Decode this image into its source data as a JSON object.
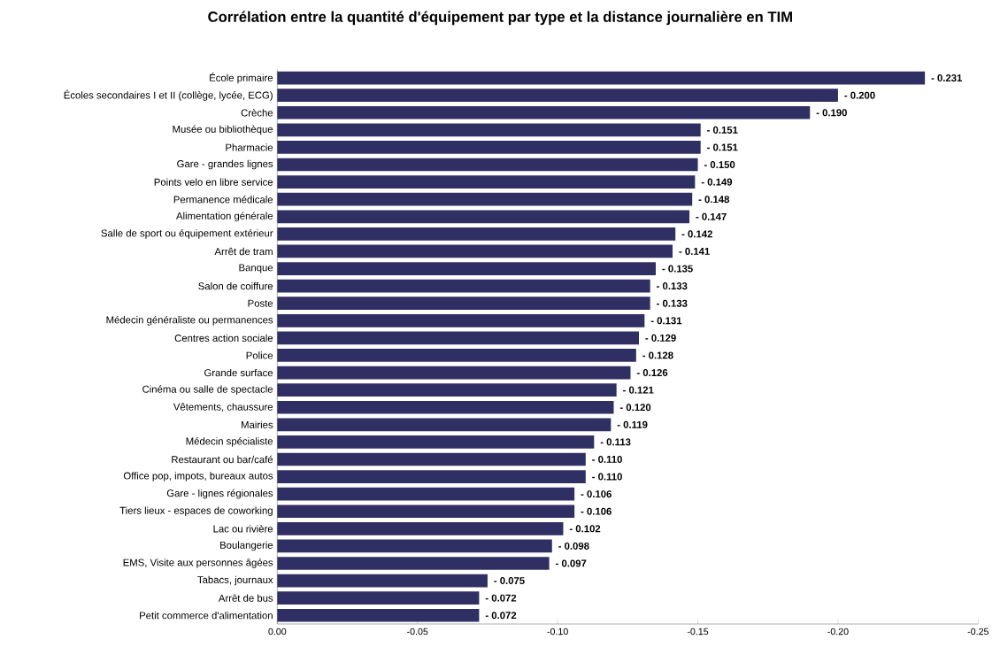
{
  "chart_data": {
    "type": "bar",
    "orientation": "horizontal",
    "title": "Corrélation entre la quantité d'équipement par type et la distance journalière en TIM",
    "categories": [
      "École primaire",
      "Écoles secondaires I et II (collège, lycée, ECG)",
      "Crèche",
      "Musée ou bibliothèque",
      "Pharmacie",
      "Gare - grandes lignes",
      "Points velo en libre service",
      "Permanence médicale",
      "Alimentation générale",
      "Salle de sport ou équipement extérieur",
      "Arrêt de tram",
      "Banque",
      "Salon de coiffure",
      "Poste",
      "Médecin généraliste ou permanences",
      "Centres action sociale",
      "Police",
      "Grande surface",
      "Cinéma ou salle de spectacle",
      "Vêtements, chaussure",
      "Mairies",
      "Médecin spécialiste",
      "Restaurant ou bar/café",
      "Office pop, impots, bureaux autos",
      "Gare - lignes régionales",
      "Tiers lieux - espaces de coworking",
      "Lac ou rivière",
      "Boulangerie",
      "EMS, Visite aux personnes âgées",
      "Tabacs, journaux",
      "Arrêt de bus",
      "Petit commerce d'alimentation"
    ],
    "values": [
      -0.231,
      -0.2,
      -0.19,
      -0.151,
      -0.151,
      -0.15,
      -0.149,
      -0.148,
      -0.147,
      -0.142,
      -0.141,
      -0.135,
      -0.133,
      -0.133,
      -0.131,
      -0.129,
      -0.128,
      -0.126,
      -0.121,
      -0.12,
      -0.119,
      -0.113,
      -0.11,
      -0.11,
      -0.106,
      -0.106,
      -0.102,
      -0.098,
      -0.097,
      -0.075,
      -0.072,
      -0.072
    ],
    "value_labels": [
      "- 0.231",
      "- 0.200",
      "- 0.190",
      "- 0.151",
      "- 0.151",
      "- 0.150",
      "- 0.149",
      "- 0.148",
      "- 0.147",
      "- 0.142",
      "- 0.141",
      "- 0.135",
      "- 0.133",
      "- 0.133",
      "- 0.131",
      "- 0.129",
      "- 0.128",
      "- 0.126",
      "- 0.121",
      "- 0.120",
      "- 0.119",
      "- 0.113",
      "- 0.110",
      "- 0.110",
      "- 0.106",
      "- 0.106",
      "- 0.102",
      "- 0.098",
      "- 0.097",
      "- 0.075",
      "- 0.072",
      "- 0.072"
    ],
    "color": "#2f2f63",
    "xlim": [
      0,
      -0.25
    ],
    "xticks": [
      {
        "value": 0,
        "label": "0.00"
      },
      {
        "value": -0.05,
        "label": "-0.05"
      },
      {
        "value": -0.1,
        "label": "-0.10"
      },
      {
        "value": -0.15,
        "label": "-0.15"
      },
      {
        "value": -0.2,
        "label": "-0.20"
      },
      {
        "value": -0.25,
        "label": "-0.25"
      }
    ]
  }
}
